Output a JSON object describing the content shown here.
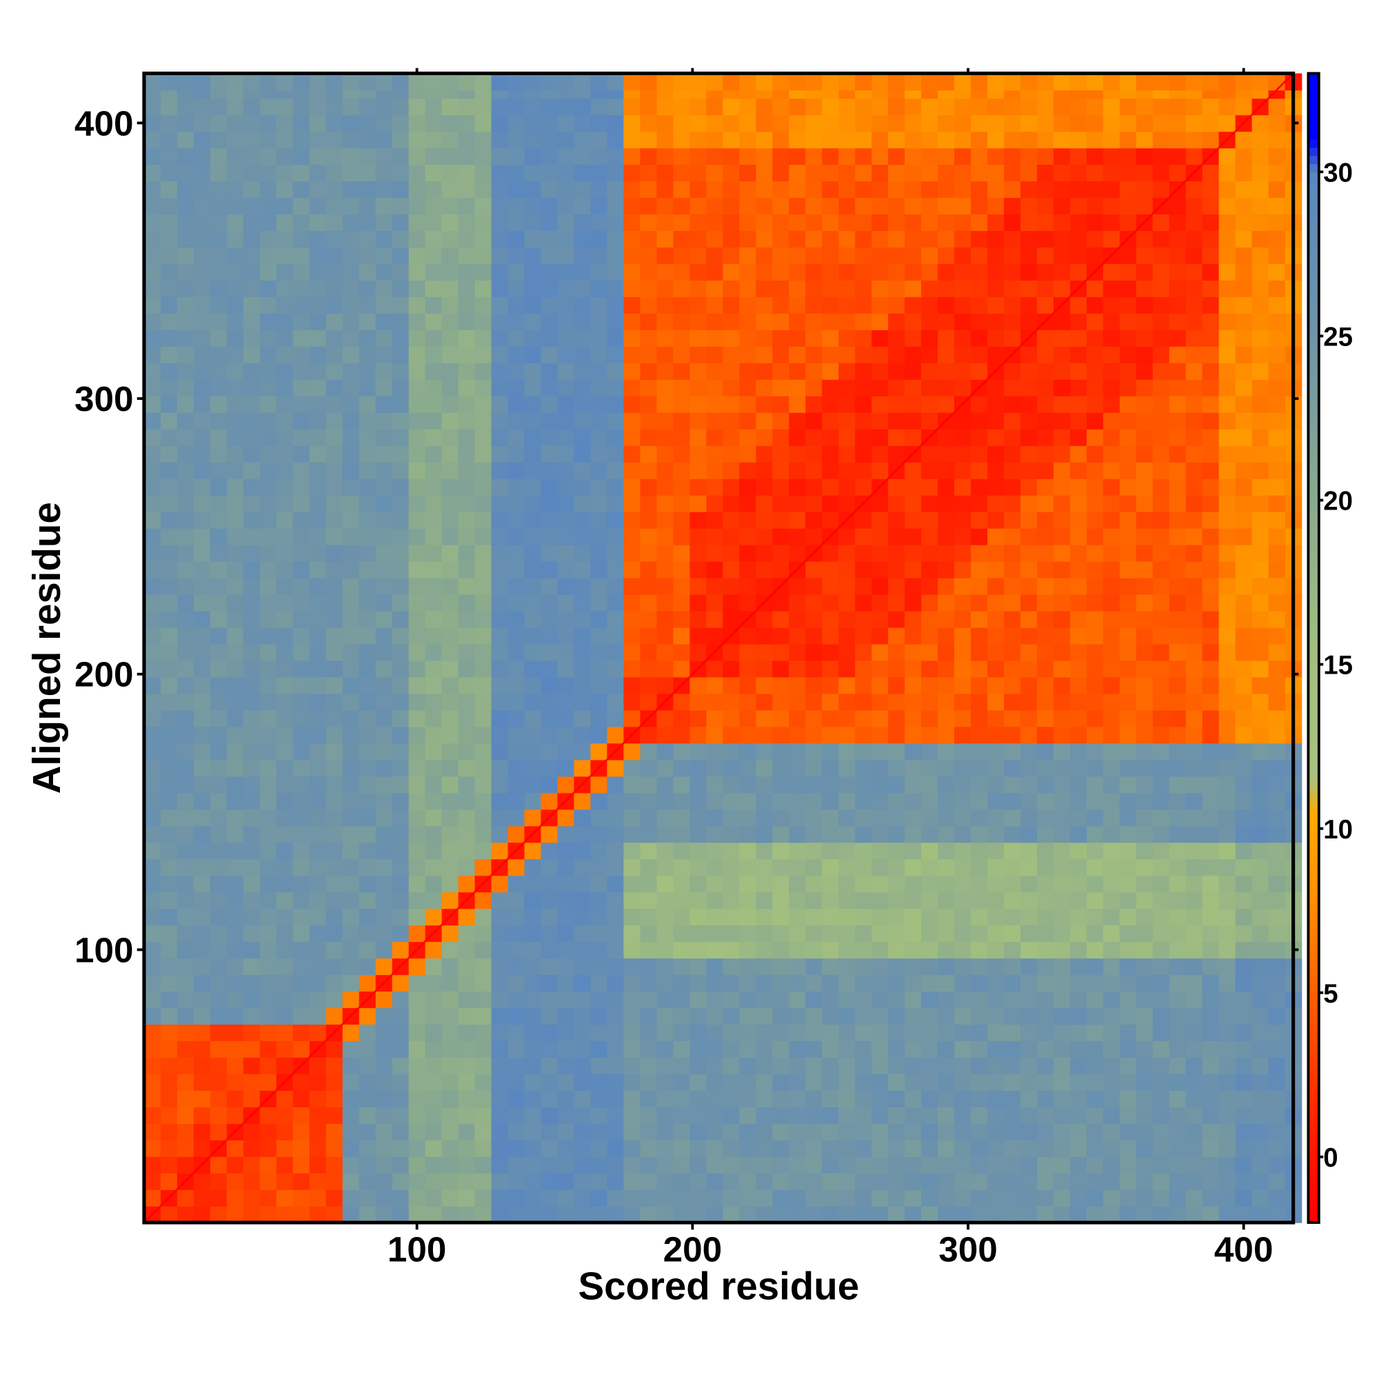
{
  "chart_data": {
    "type": "heatmap",
    "title": "",
    "xlabel": "Scored residue",
    "ylabel": "Aligned residue",
    "xlim": [
      1,
      418
    ],
    "ylim": [
      1,
      418
    ],
    "x_ticks": [
      100,
      200,
      300,
      400
    ],
    "y_ticks": [
      100,
      200,
      300,
      400
    ],
    "colorbar": {
      "range": [
        -2,
        33
      ],
      "ticks": [
        0,
        5,
        10,
        15,
        20,
        25,
        30
      ],
      "stops": [
        {
          "v": -2,
          "color": "#ff0000"
        },
        {
          "v": 0,
          "color": "#ff1500"
        },
        {
          "v": 2,
          "color": "#ff3000"
        },
        {
          "v": 4,
          "color": "#ff5000"
        },
        {
          "v": 6,
          "color": "#ff7000"
        },
        {
          "v": 8,
          "color": "#ff9000"
        },
        {
          "v": 10.5,
          "color": "#ffaa00"
        },
        {
          "v": 11.5,
          "color": "#a8c27e"
        },
        {
          "v": 15,
          "color": "#a4c07e"
        },
        {
          "v": 20,
          "color": "#8aaa8e"
        },
        {
          "v": 25,
          "color": "#6f94a8"
        },
        {
          "v": 30,
          "color": "#5a87bf"
        },
        {
          "v": 31,
          "color": "#0000ff"
        },
        {
          "v": 33,
          "color": "#0000ff"
        }
      ]
    },
    "bin_size": 6,
    "diagonal_value": 0,
    "domains": [
      {
        "name": "domain-1",
        "range": [
          1,
          72
        ],
        "value": 2.5
      },
      {
        "name": "domain-2",
        "range": [
          178,
          418
        ],
        "value": 4.5,
        "core_range": [
          200,
          390
        ],
        "core_value": 1.5
      }
    ],
    "linker": {
      "range": [
        72,
        178
      ],
      "band_width": 10,
      "value": 4
    },
    "background_value": 25,
    "features": [
      {
        "axis": "x",
        "range": [
          95,
          130
        ],
        "value": 20
      },
      {
        "axis": "x",
        "range": [
          130,
          175
        ],
        "value": 28
      },
      {
        "axis": "y",
        "range": [
          100,
          140
        ],
        "x_range": [
          178,
          418
        ],
        "value": 17
      }
    ]
  }
}
